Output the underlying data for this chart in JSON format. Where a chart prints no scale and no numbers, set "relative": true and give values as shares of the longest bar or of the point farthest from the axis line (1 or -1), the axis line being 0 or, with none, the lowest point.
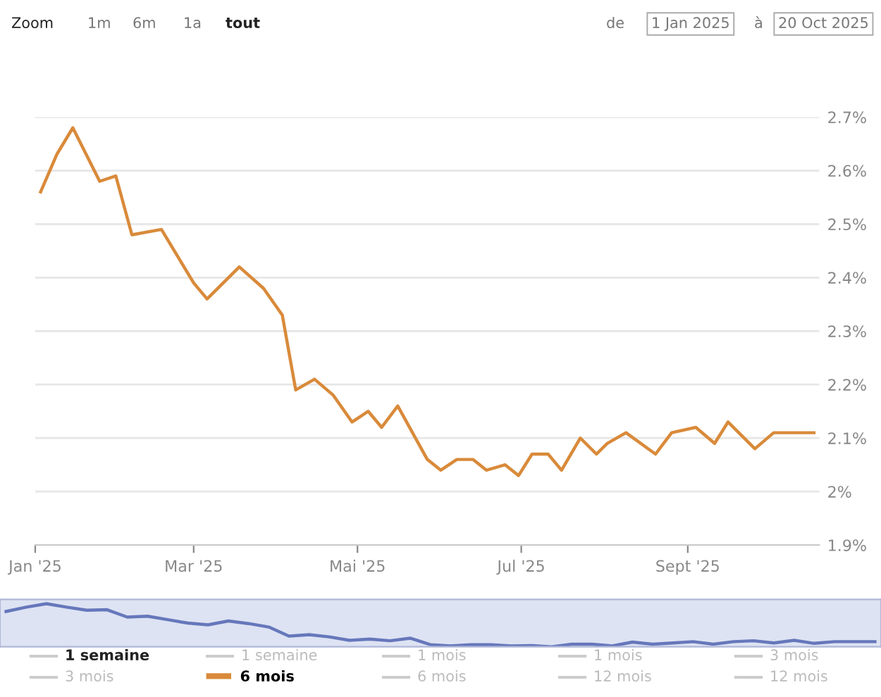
{
  "chart_data": [
    {
      "type": "line",
      "x": [
        "2025-01-03",
        "2025-01-09",
        "2025-01-15",
        "2025-01-20",
        "2025-01-25",
        "2025-01-31",
        "2025-02-06",
        "2025-02-17",
        "2025-02-23",
        "2025-03-01",
        "2025-03-06",
        "2025-03-18",
        "2025-03-27",
        "2025-04-03",
        "2025-04-08",
        "2025-04-15",
        "2025-04-22",
        "2025-04-29",
        "2025-05-05",
        "2025-05-10",
        "2025-05-16",
        "2025-05-27",
        "2025-06-01",
        "2025-06-07",
        "2025-06-13",
        "2025-06-18",
        "2025-06-25",
        "2025-06-30",
        "2025-07-05",
        "2025-07-11",
        "2025-07-16",
        "2025-07-23",
        "2025-07-29",
        "2025-08-02",
        "2025-08-09",
        "2025-08-20",
        "2025-08-26",
        "2025-09-04",
        "2025-09-11",
        "2025-09-16",
        "2025-09-26",
        "2025-10-03",
        "2025-10-07",
        "2025-10-18"
      ],
      "series": [
        {
          "name": "6 mois",
          "color": "#d98a3a",
          "values": [
            2.56,
            2.63,
            2.68,
            2.63,
            2.58,
            2.59,
            2.48,
            2.49,
            2.44,
            2.39,
            2.36,
            2.42,
            2.38,
            2.33,
            2.19,
            2.21,
            2.18,
            2.13,
            2.15,
            2.12,
            2.16,
            2.06,
            2.04,
            2.06,
            2.06,
            2.04,
            2.05,
            2.03,
            2.07,
            2.07,
            2.04,
            2.1,
            2.07,
            2.09,
            2.11,
            2.07,
            2.11,
            2.12,
            2.09,
            2.13,
            2.08,
            2.11,
            2.11,
            2.11
          ]
        }
      ],
      "xlim": [
        "2025-01-01",
        "2025-10-20"
      ],
      "xticks": [
        {
          "value": "2025-01-01",
          "label": "Jan '25"
        },
        {
          "value": "2025-03-01",
          "label": "Mar '25"
        },
        {
          "value": "2025-05-01",
          "label": "Mai '25"
        },
        {
          "value": "2025-07-01",
          "label": "Jul '25"
        },
        {
          "value": "2025-09-01",
          "label": "Sept '25"
        }
      ],
      "ylim": [
        1.9,
        2.7
      ],
      "yticks": [
        {
          "value": 1.9,
          "label": "1.9%"
        },
        {
          "value": 2.0,
          "label": "2%"
        },
        {
          "value": 2.1,
          "label": "2.1%"
        },
        {
          "value": 2.2,
          "label": "2.2%"
        },
        {
          "value": 2.3,
          "label": "2.3%"
        },
        {
          "value": 2.4,
          "label": "2.4%"
        },
        {
          "value": 2.5,
          "label": "2.5%"
        },
        {
          "value": 2.6,
          "label": "2.6%"
        },
        {
          "value": 2.7,
          "label": "2.7%"
        }
      ],
      "grid": "y",
      "legend": "bottom",
      "line_style": "solid",
      "marker": "none",
      "annotations": [
        "Zoom",
        "1m",
        "6m",
        "1a",
        "tout",
        "de",
        "1 Jan 2025",
        "à",
        "20 Oct 2025",
        "1 semaine",
        "1 semaine",
        "1 mois",
        "1 mois",
        "3 mois",
        "3 mois",
        "6 mois",
        "12 mois",
        "12 mois"
      ]
    },
    {
      "type": "line",
      "relative": true,
      "categories": [
        null,
        null,
        null,
        null,
        null,
        null,
        null,
        null,
        null,
        null,
        null,
        null,
        null,
        null,
        null,
        null,
        null,
        null,
        null,
        null,
        null,
        null,
        null,
        null,
        null,
        null,
        null,
        null,
        null,
        null,
        null,
        null,
        null,
        null,
        null,
        null,
        null,
        null,
        null,
        null,
        null,
        null,
        null,
        null
      ],
      "series": [
        {
          "color": "#6677bb",
          "values": [
            0.82,
            0.92,
            1,
            0.92,
            0.85,
            0.86,
            0.69,
            0.71,
            0.63,
            0.55,
            0.51,
            0.6,
            0.54,
            0.46,
            0.25,
            0.28,
            0.23,
            0.15,
            0.18,
            0.14,
            0.2,
            0.05,
            0.02,
            0.05,
            0.05,
            0.02,
            0.03,
            0,
            0.06,
            0.06,
            0.02,
            0.11,
            0.06,
            0.09,
            0.12,
            0.06,
            0.12,
            0.14,
            0.09,
            0.15,
            0.08,
            0.12,
            0.12,
            0.12
          ]
        }
      ]
    }
  ]
}
